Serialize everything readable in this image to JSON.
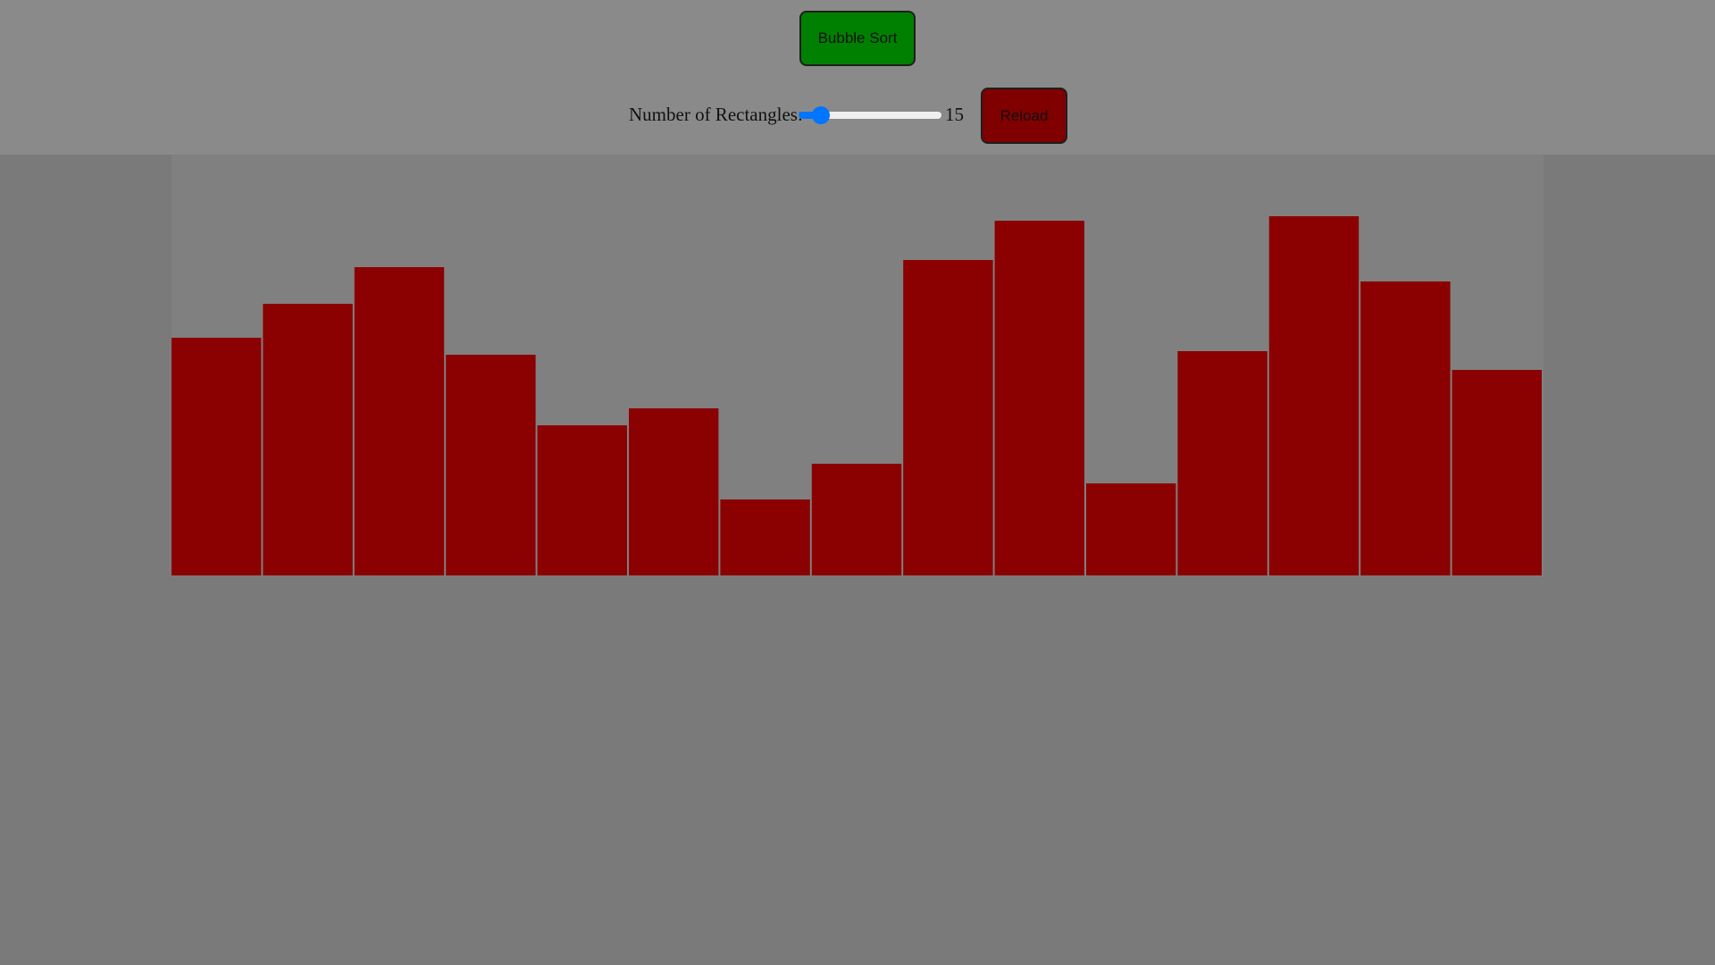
{
  "controls": {
    "sort_button_label": "Bubble Sort",
    "count_label": "Number of Rectangles:",
    "count_value": "15",
    "slider": {
      "min": 5,
      "max": 100,
      "value": 15
    },
    "reload_button_label": "Reload"
  },
  "colors": {
    "sort_button": "#008000",
    "reload_button": "#800000",
    "bar": "#8b0000",
    "slider_accent": "#0075ff"
  },
  "chart_data": {
    "type": "bar",
    "values": [
      266,
      304,
      345,
      247,
      168,
      187,
      85,
      125,
      353,
      397,
      103,
      251,
      402,
      329,
      230
    ],
    "ylim": [
      0,
      471
    ]
  }
}
